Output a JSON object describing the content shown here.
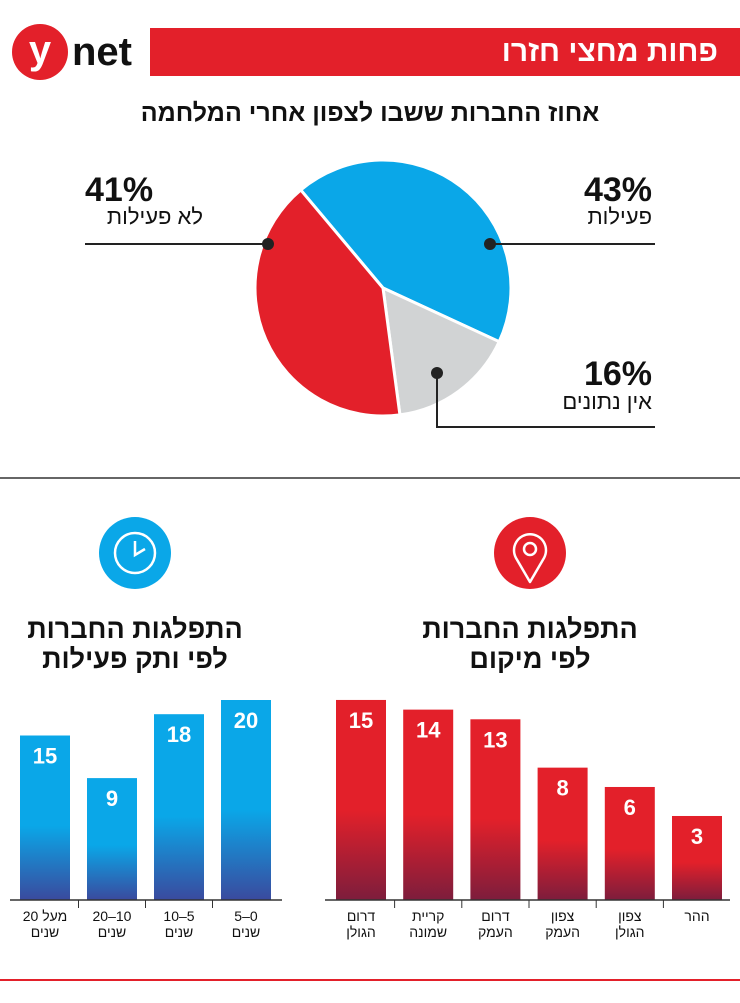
{
  "header": {
    "logo_y": "y",
    "logo_net": "net",
    "headline": "פחות מחצי חזרו"
  },
  "chart_data": [
    {
      "type": "pie",
      "title": "אחוז החברות ששבו לצפון אחרי המלחמה",
      "categories": [
        "פעילות",
        "אין נתונים",
        "לא פעילות"
      ],
      "values": [
        43,
        16,
        41
      ],
      "value_labels": [
        "43%",
        "16%",
        "41%"
      ],
      "colors": [
        "#0aa7e8",
        "#d1d3d4",
        "#e3202a"
      ]
    },
    {
      "type": "bar",
      "title": "התפלגות החברות\nלפי ותק פעילות",
      "categories": [
        "מעל 20\nשנים",
        "10–20\nשנים",
        "5–10\nשנים",
        "0–5\nשנים"
      ],
      "values": [
        15,
        9,
        18,
        20
      ],
      "color": "#0aa7e8"
    },
    {
      "type": "bar",
      "title": "התפלגות החברות\nלפי מיקום",
      "categories": [
        "דרום\nהגולן",
        "קריית\nשמונה",
        "דרום\nהעמק",
        "צפון\nהעמק",
        "צפון\nהגולן",
        "ההר"
      ],
      "values": [
        15,
        14,
        13,
        8,
        6,
        3
      ],
      "color": "#e3202a"
    }
  ]
}
